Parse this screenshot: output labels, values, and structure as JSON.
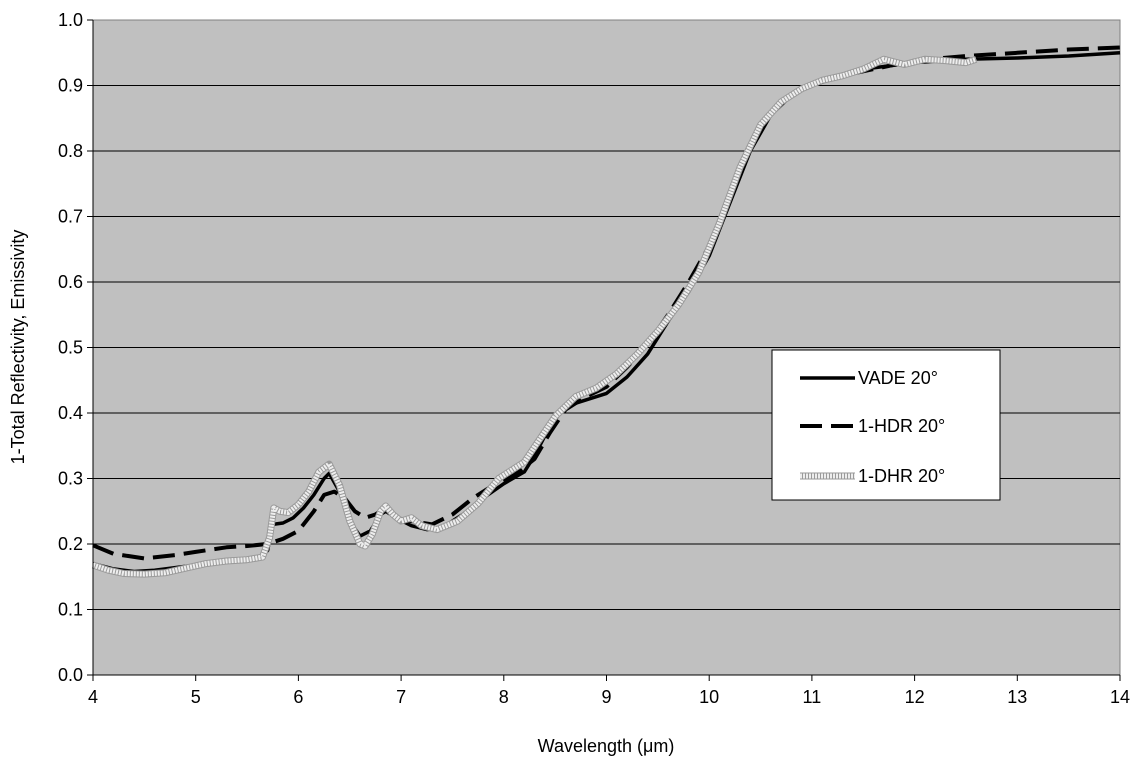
{
  "chart_data": {
    "type": "line",
    "xlabel": "Wavelength (μm)",
    "ylabel": "1-Total Reflectivity, Emissivity",
    "xlim": [
      4,
      14
    ],
    "ylim": [
      0.0,
      1.0
    ],
    "x_ticks": [
      "4",
      "5",
      "6",
      "7",
      "8",
      "9",
      "10",
      "11",
      "12",
      "13",
      "14"
    ],
    "y_ticks": [
      "0.0",
      "0.1",
      "0.2",
      "0.3",
      "0.4",
      "0.5",
      "0.6",
      "0.7",
      "0.8",
      "0.9",
      "1.0"
    ],
    "grid": "horizontal",
    "plot_background": "#c0c0c0",
    "legend_position": "right-middle",
    "series": [
      {
        "name": "VADE 20°",
        "style": "solid",
        "color": "#000000",
        "points": [
          [
            4.0,
            0.17
          ],
          [
            4.2,
            0.162
          ],
          [
            4.4,
            0.158
          ],
          [
            4.6,
            0.16
          ],
          [
            4.8,
            0.164
          ],
          [
            5.0,
            0.168
          ],
          [
            5.2,
            0.172
          ],
          [
            5.4,
            0.174
          ],
          [
            5.6,
            0.177
          ],
          [
            5.7,
            0.19
          ],
          [
            5.75,
            0.23
          ],
          [
            5.85,
            0.232
          ],
          [
            5.95,
            0.24
          ],
          [
            6.05,
            0.255
          ],
          [
            6.15,
            0.275
          ],
          [
            6.25,
            0.3
          ],
          [
            6.3,
            0.308
          ],
          [
            6.4,
            0.28
          ],
          [
            6.5,
            0.235
          ],
          [
            6.6,
            0.212
          ],
          [
            6.7,
            0.22
          ],
          [
            6.8,
            0.245
          ],
          [
            6.85,
            0.25
          ],
          [
            6.95,
            0.24
          ],
          [
            7.1,
            0.228
          ],
          [
            7.25,
            0.222
          ],
          [
            7.4,
            0.225
          ],
          [
            7.6,
            0.245
          ],
          [
            7.8,
            0.27
          ],
          [
            8.0,
            0.292
          ],
          [
            8.2,
            0.31
          ],
          [
            8.3,
            0.335
          ],
          [
            8.45,
            0.38
          ],
          [
            8.6,
            0.41
          ],
          [
            8.8,
            0.42
          ],
          [
            9.0,
            0.43
          ],
          [
            9.2,
            0.455
          ],
          [
            9.4,
            0.49
          ],
          [
            9.6,
            0.54
          ],
          [
            9.8,
            0.585
          ],
          [
            10.0,
            0.64
          ],
          [
            10.2,
            0.72
          ],
          [
            10.4,
            0.8
          ],
          [
            10.6,
            0.855
          ],
          [
            10.8,
            0.885
          ],
          [
            11.0,
            0.9
          ],
          [
            11.2,
            0.91
          ],
          [
            11.5,
            0.925
          ],
          [
            12.0,
            0.935
          ],
          [
            12.5,
            0.94
          ],
          [
            13.0,
            0.942
          ],
          [
            13.5,
            0.945
          ],
          [
            14.0,
            0.95
          ]
        ]
      },
      {
        "name": "1-HDR 20°",
        "style": "dashed",
        "color": "#000000",
        "points": [
          [
            4.0,
            0.198
          ],
          [
            4.2,
            0.185
          ],
          [
            4.5,
            0.178
          ],
          [
            4.8,
            0.183
          ],
          [
            5.0,
            0.188
          ],
          [
            5.3,
            0.195
          ],
          [
            5.5,
            0.197
          ],
          [
            5.7,
            0.2
          ],
          [
            5.85,
            0.208
          ],
          [
            6.0,
            0.22
          ],
          [
            6.15,
            0.25
          ],
          [
            6.25,
            0.275
          ],
          [
            6.35,
            0.28
          ],
          [
            6.45,
            0.27
          ],
          [
            6.55,
            0.25
          ],
          [
            6.65,
            0.24
          ],
          [
            6.75,
            0.245
          ],
          [
            6.85,
            0.255
          ],
          [
            6.95,
            0.24
          ],
          [
            7.1,
            0.235
          ],
          [
            7.3,
            0.23
          ],
          [
            7.5,
            0.245
          ],
          [
            7.7,
            0.27
          ],
          [
            7.9,
            0.29
          ],
          [
            8.1,
            0.305
          ],
          [
            8.3,
            0.33
          ],
          [
            8.45,
            0.37
          ],
          [
            8.6,
            0.405
          ],
          [
            8.8,
            0.425
          ],
          [
            9.0,
            0.44
          ],
          [
            9.2,
            0.47
          ],
          [
            9.4,
            0.505
          ],
          [
            9.6,
            0.55
          ],
          [
            9.8,
            0.6
          ],
          [
            10.0,
            0.655
          ],
          [
            10.2,
            0.735
          ],
          [
            10.4,
            0.81
          ],
          [
            10.6,
            0.86
          ],
          [
            10.8,
            0.888
          ],
          [
            11.0,
            0.902
          ],
          [
            11.3,
            0.915
          ],
          [
            11.6,
            0.925
          ],
          [
            12.0,
            0.938
          ],
          [
            12.5,
            0.945
          ],
          [
            13.0,
            0.95
          ],
          [
            13.5,
            0.955
          ],
          [
            14.0,
            0.958
          ]
        ]
      },
      {
        "name": "1-DHR 20°",
        "style": "dotted",
        "color": "#eeeeee",
        "points": [
          [
            4.0,
            0.168
          ],
          [
            4.15,
            0.16
          ],
          [
            4.3,
            0.155
          ],
          [
            4.5,
            0.154
          ],
          [
            4.7,
            0.156
          ],
          [
            4.9,
            0.163
          ],
          [
            5.1,
            0.17
          ],
          [
            5.3,
            0.174
          ],
          [
            5.5,
            0.176
          ],
          [
            5.65,
            0.18
          ],
          [
            5.72,
            0.21
          ],
          [
            5.76,
            0.255
          ],
          [
            5.82,
            0.25
          ],
          [
            5.9,
            0.248
          ],
          [
            6.0,
            0.26
          ],
          [
            6.1,
            0.28
          ],
          [
            6.2,
            0.31
          ],
          [
            6.3,
            0.322
          ],
          [
            6.4,
            0.29
          ],
          [
            6.5,
            0.235
          ],
          [
            6.6,
            0.2
          ],
          [
            6.65,
            0.197
          ],
          [
            6.72,
            0.215
          ],
          [
            6.8,
            0.25
          ],
          [
            6.85,
            0.258
          ],
          [
            6.92,
            0.245
          ],
          [
            7.0,
            0.235
          ],
          [
            7.1,
            0.24
          ],
          [
            7.2,
            0.228
          ],
          [
            7.35,
            0.222
          ],
          [
            7.55,
            0.235
          ],
          [
            7.75,
            0.262
          ],
          [
            7.95,
            0.3
          ],
          [
            8.05,
            0.31
          ],
          [
            8.2,
            0.325
          ],
          [
            8.35,
            0.36
          ],
          [
            8.5,
            0.395
          ],
          [
            8.7,
            0.425
          ],
          [
            8.9,
            0.438
          ],
          [
            9.1,
            0.46
          ],
          [
            9.3,
            0.49
          ],
          [
            9.5,
            0.525
          ],
          [
            9.7,
            0.565
          ],
          [
            9.9,
            0.615
          ],
          [
            10.1,
            0.69
          ],
          [
            10.3,
            0.775
          ],
          [
            10.5,
            0.84
          ],
          [
            10.7,
            0.875
          ],
          [
            10.9,
            0.895
          ],
          [
            11.1,
            0.908
          ],
          [
            11.3,
            0.915
          ],
          [
            11.5,
            0.925
          ],
          [
            11.7,
            0.94
          ],
          [
            11.9,
            0.932
          ],
          [
            12.1,
            0.94
          ],
          [
            12.3,
            0.938
          ],
          [
            12.5,
            0.935
          ],
          [
            12.6,
            0.94
          ]
        ]
      }
    ]
  }
}
